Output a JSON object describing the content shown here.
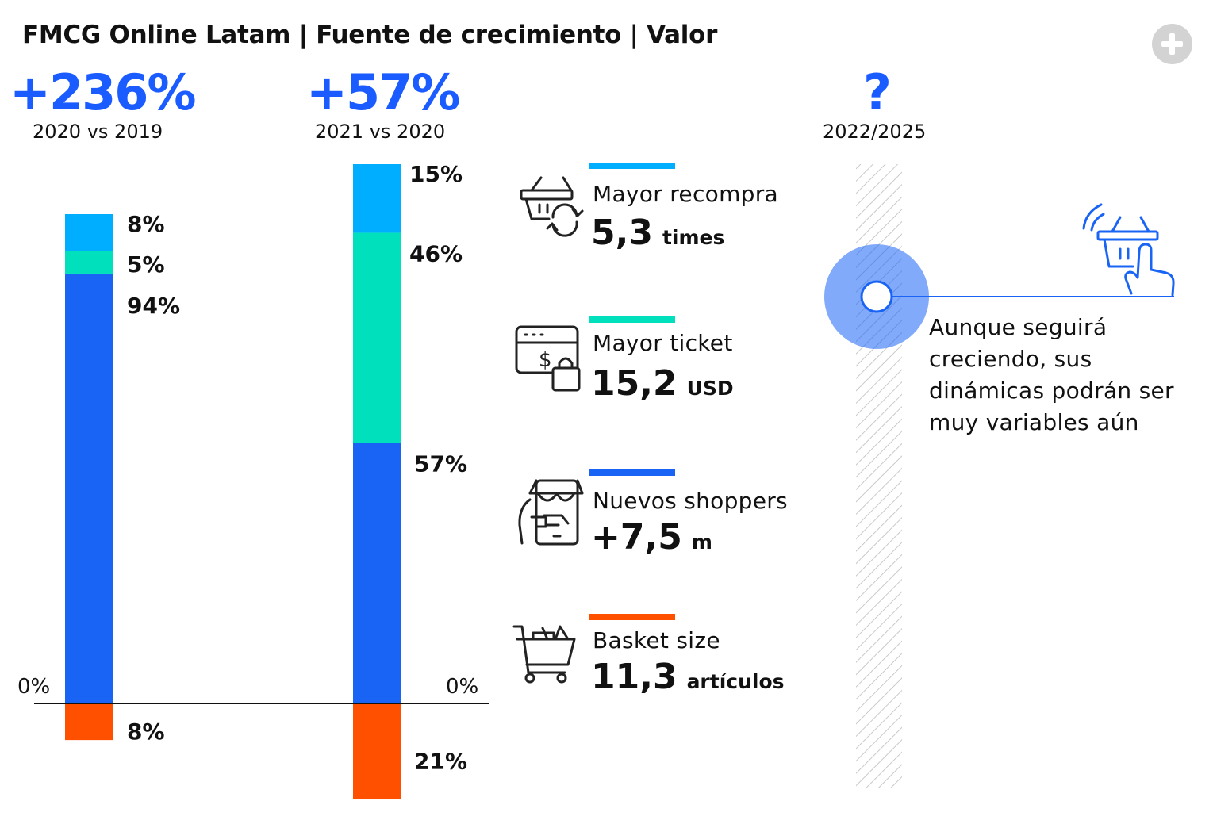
{
  "title": "FMCG Online Latam | Fuente de crecimiento | Valor",
  "headers": [
    {
      "growth": "+236%",
      "period": "2020 vs 2019"
    },
    {
      "growth": "+57%",
      "period": "2021 vs 2020"
    },
    {
      "growth": "?",
      "period": "2022/2025"
    }
  ],
  "chart_data": {
    "type": "bar",
    "stacked": true,
    "categories": [
      "2020 vs 2019",
      "2021 vs 2020"
    ],
    "zero_labels": [
      "0%",
      "0%"
    ],
    "series": [
      {
        "key": "basket",
        "values": [
          -8,
          -21
        ],
        "labels": [
          "8%",
          "21%"
        ],
        "color": "#ff5000"
      },
      {
        "key": "shoppers",
        "values": [
          94,
          57
        ],
        "labels": [
          "94%",
          "57%"
        ],
        "color": "#1a64f5"
      },
      {
        "key": "ticket",
        "values": [
          5,
          46
        ],
        "labels": [
          "5%",
          "46%"
        ],
        "color": "#00e0bc"
      },
      {
        "key": "recompra",
        "values": [
          8,
          15
        ],
        "labels": [
          "8%",
          "15%"
        ],
        "color": "#00aeff"
      }
    ]
  },
  "drivers": [
    {
      "label": "Mayor recompra",
      "value": "5,3",
      "unit": "times",
      "color": "#00aeff",
      "icon": "basket-repeat-icon"
    },
    {
      "label": "Mayor ticket",
      "value": "15,2",
      "unit": "USD",
      "color": "#00e0bc",
      "icon": "price-bag-icon"
    },
    {
      "label": "Nuevos shoppers",
      "value": "+7,5",
      "unit": "m",
      "color": "#1a64f5",
      "icon": "mobile-store-icon"
    },
    {
      "label": "Basket size",
      "value": "11,3",
      "unit": "artículos",
      "color": "#ff5000",
      "icon": "shopping-cart-icon"
    }
  ],
  "forecast": {
    "note": "Aunque seguirá creciendo, sus dinámicas podrán ser muy variables aún",
    "icon": "touch-basket-icon",
    "accent": "#1a64f5"
  }
}
